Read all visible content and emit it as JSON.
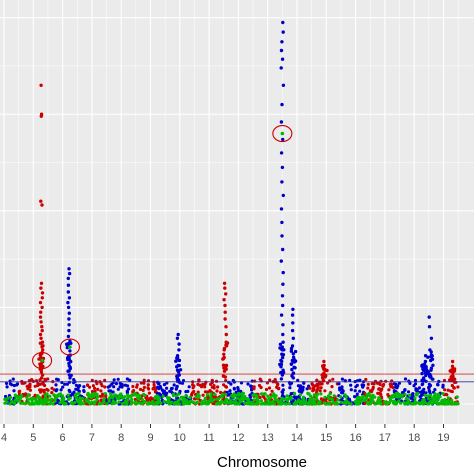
{
  "chart_data": {
    "type": "scatter",
    "title": "",
    "xlabel": "Chromosome",
    "ylabel": "",
    "x_ticks": [
      "4",
      "5",
      "6",
      "7",
      "8",
      "9",
      "10",
      "11",
      "12",
      "13",
      "14",
      "15",
      "16",
      "17",
      "18",
      "19"
    ],
    "x_range": [
      4,
      19.5
    ],
    "y_range": [
      0,
      41
    ],
    "grid": true,
    "legend": "none",
    "colors": {
      "red": "#cc0000",
      "blue": "#0000cc",
      "green": "#00bb00",
      "panel": "#ebebeb",
      "gridline": "#ffffff"
    },
    "threshold_lines": [
      {
        "value": 3.1,
        "color": "#cc3333"
      },
      {
        "value": 2.3,
        "color": "#333399"
      }
    ],
    "highlighted_points": [
      {
        "chromosome": 5.3,
        "value": 4.5
      },
      {
        "chromosome": 6.25,
        "value": 5.9
      },
      {
        "chromosome": 13.5,
        "value": 28.0
      }
    ],
    "peaks": [
      {
        "chromosome": 5.28,
        "max": 33.0,
        "color": "red",
        "points": [
          33.0,
          30.0,
          29.8,
          21.0,
          20.6,
          12.5,
          12.0,
          11.5,
          11.0,
          10.5,
          10.0,
          9.5,
          9.0,
          8.5,
          8.0,
          7.6,
          7.2,
          6.8,
          6.4,
          6.0,
          5.6,
          5.2,
          4.8,
          4.5,
          4.2,
          3.9,
          3.6,
          3.3,
          3.0,
          2.7
        ]
      },
      {
        "chromosome": 6.22,
        "max": 14.0,
        "color": "blue",
        "points": [
          14.0,
          13.5,
          13.0,
          12.3,
          11.6,
          11.0,
          10.5,
          10.0,
          9.4,
          8.8,
          8.2,
          7.6,
          7.0,
          6.5,
          6.0,
          5.5,
          5.0,
          4.6,
          4.2,
          3.8,
          3.4,
          3.0,
          2.7
        ]
      },
      {
        "chromosome": 9.95,
        "max": 7.2,
        "color": "blue",
        "points": [
          7.2,
          6.8,
          6.2,
          5.6,
          5.0,
          4.5,
          4.0,
          3.5,
          3.0,
          2.6
        ]
      },
      {
        "chromosome": 11.55,
        "max": 12.5,
        "color": "red",
        "points": [
          12.5,
          12.0,
          11.4,
          10.8,
          10.2,
          9.5,
          8.8,
          8.0,
          7.2,
          6.4,
          5.6,
          4.8,
          4.0,
          3.4,
          2.8
        ]
      },
      {
        "chromosome": 13.5,
        "max": 39.5,
        "color": "blue",
        "points": [
          39.5,
          38.5,
          37.5,
          36.6,
          35.7,
          34.8,
          33.0,
          31.0,
          29.2,
          27.4,
          26.0,
          24.5,
          23.0,
          21.6,
          20.2,
          18.8,
          17.4,
          16.0,
          14.8,
          13.6,
          12.4,
          11.2,
          10.2,
          9.2,
          8.2,
          7.2,
          6.4,
          5.6,
          4.8,
          4.1,
          3.5,
          3.0,
          2.6
        ]
      },
      {
        "chromosome": 13.88,
        "max": 9.8,
        "color": "blue",
        "points": [
          9.8,
          9.2,
          8.4,
          7.6,
          6.8,
          6.0,
          5.2,
          4.5,
          3.8,
          3.2,
          2.7
        ]
      },
      {
        "chromosome": 14.95,
        "max": 4.4,
        "color": "red",
        "points": [
          4.4,
          4.0,
          3.6,
          3.2,
          2.8
        ]
      },
      {
        "chromosome": 18.35,
        "max": 5.0,
        "color": "blue",
        "points": [
          5.0,
          4.4,
          3.8,
          3.2,
          2.7
        ]
      },
      {
        "chromosome": 18.55,
        "max": 9.0,
        "color": "blue",
        "points": [
          9.0,
          8.0,
          6.8,
          5.6,
          4.5,
          3.5,
          2.8
        ]
      },
      {
        "chromosome": 19.3,
        "max": 4.4,
        "color": "red",
        "points": [
          4.4,
          3.9,
          3.4,
          2.9
        ]
      }
    ],
    "chromosome_colors": [
      {
        "from": 4.0,
        "to": 4.5,
        "color": "blue"
      },
      {
        "from": 4.5,
        "to": 5.75,
        "color": "red"
      },
      {
        "from": 5.75,
        "to": 6.75,
        "color": "blue"
      },
      {
        "from": 6.75,
        "to": 7.5,
        "color": "red"
      },
      {
        "from": 7.5,
        "to": 8.3,
        "color": "blue"
      },
      {
        "from": 8.3,
        "to": 9.2,
        "color": "red"
      },
      {
        "from": 9.2,
        "to": 10.4,
        "color": "blue"
      },
      {
        "from": 10.4,
        "to": 11.6,
        "color": "red"
      },
      {
        "from": 11.6,
        "to": 12.5,
        "color": "blue"
      },
      {
        "from": 12.5,
        "to": 13.4,
        "color": "red"
      },
      {
        "from": 13.4,
        "to": 14.4,
        "color": "blue"
      },
      {
        "from": 14.4,
        "to": 15.4,
        "color": "red"
      },
      {
        "from": 15.4,
        "to": 16.3,
        "color": "blue"
      },
      {
        "from": 16.3,
        "to": 17.3,
        "color": "red"
      },
      {
        "from": 17.3,
        "to": 18.2,
        "color": "blue"
      },
      {
        "from": 18.2,
        "to": 19.0,
        "color": "blue"
      },
      {
        "from": 19.0,
        "to": 19.5,
        "color": "red"
      }
    ]
  }
}
